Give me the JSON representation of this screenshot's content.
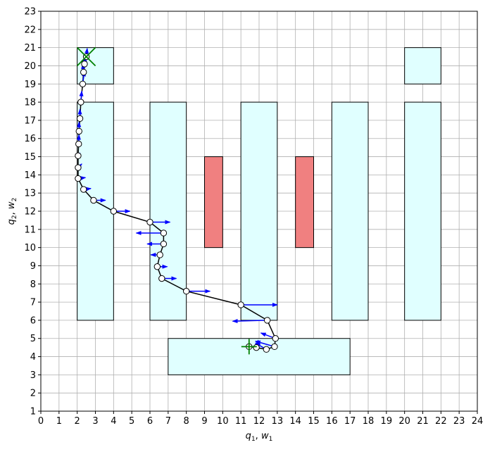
{
  "figure": {
    "xlabel": "q_1, w_1",
    "ylabel": "q_2, w_2"
  },
  "colors": {
    "obstacle_fill": "#e0ffff",
    "obstacle_edge": "#000000",
    "hazard_fill": "#f08080",
    "path": "#000000",
    "waypoint_fill": "#ffffff",
    "arrow": "#0000ff",
    "start_marker": "#008000",
    "goal_marker": "#008000",
    "grid": "#b0b0b0"
  },
  "chart_data": {
    "type": "scatter",
    "title": "",
    "xlabel": "q_1, w_1",
    "ylabel": "q_2, w_2",
    "xlim": [
      0,
      24
    ],
    "ylim": [
      1,
      23
    ],
    "xticks": [
      0,
      1,
      2,
      3,
      4,
      5,
      6,
      7,
      8,
      9,
      10,
      11,
      12,
      13,
      14,
      15,
      16,
      17,
      18,
      19,
      20,
      21,
      22,
      23,
      24
    ],
    "yticks": [
      1,
      2,
      3,
      4,
      5,
      6,
      7,
      8,
      9,
      10,
      11,
      12,
      13,
      14,
      15,
      16,
      17,
      18,
      19,
      20,
      21,
      22,
      23
    ],
    "grid": true,
    "obstacles": [
      {
        "x": 2,
        "y": 19,
        "w": 2,
        "h": 2
      },
      {
        "x": 2,
        "y": 6,
        "w": 2,
        "h": 12
      },
      {
        "x": 6,
        "y": 6,
        "w": 2,
        "h": 12
      },
      {
        "x": 11,
        "y": 6,
        "w": 2,
        "h": 12
      },
      {
        "x": 16,
        "y": 6,
        "w": 2,
        "h": 12
      },
      {
        "x": 20,
        "y": 6,
        "w": 2,
        "h": 12
      },
      {
        "x": 20,
        "y": 19,
        "w": 2,
        "h": 2
      },
      {
        "x": 7,
        "y": 3,
        "w": 10,
        "h": 2
      }
    ],
    "hazards": [
      {
        "x": 9,
        "y": 10,
        "w": 1,
        "h": 5
      },
      {
        "x": 14,
        "y": 10,
        "w": 1,
        "h": 5
      }
    ],
    "path": [
      [
        2.5,
        20.5
      ],
      [
        2.4,
        20.1
      ],
      [
        2.35,
        19.65
      ],
      [
        2.3,
        19.0
      ],
      [
        2.2,
        18.0
      ],
      [
        2.15,
        17.1
      ],
      [
        2.1,
        16.4
      ],
      [
        2.08,
        15.7
      ],
      [
        2.05,
        15.05
      ],
      [
        2.05,
        14.4
      ],
      [
        2.05,
        13.8
      ],
      [
        2.35,
        13.2
      ],
      [
        2.9,
        12.6
      ],
      [
        4.0,
        12.0
      ],
      [
        6.0,
        11.4
      ],
      [
        6.75,
        10.8
      ],
      [
        6.75,
        10.2
      ],
      [
        6.55,
        9.6
      ],
      [
        6.4,
        8.95
      ],
      [
        6.65,
        8.3
      ],
      [
        8.0,
        7.6
      ],
      [
        11.0,
        6.85
      ],
      [
        12.45,
        6.0
      ],
      [
        12.9,
        5.0
      ],
      [
        12.85,
        4.55
      ],
      [
        12.4,
        4.4
      ],
      [
        11.85,
        4.5
      ],
      [
        11.45,
        4.55
      ]
    ],
    "arrows": [
      [
        2.5,
        20.5,
        2.55,
        20.95
      ],
      [
        2.4,
        20.1,
        2.45,
        20.5
      ],
      [
        2.35,
        19.65,
        2.3,
        20.1
      ],
      [
        2.3,
        19.0,
        2.4,
        19.7
      ],
      [
        2.2,
        18.0,
        2.25,
        18.6
      ],
      [
        2.15,
        17.1,
        2.15,
        17.6
      ],
      [
        2.1,
        16.4,
        2.1,
        16.9
      ],
      [
        2.08,
        15.7,
        2.1,
        16.2
      ],
      [
        2.05,
        15.05,
        2.15,
        15.2
      ],
      [
        2.05,
        14.4,
        2.25,
        14.6
      ],
      [
        2.05,
        13.8,
        2.45,
        13.85
      ],
      [
        2.35,
        13.2,
        2.75,
        13.25
      ],
      [
        2.9,
        12.6,
        3.55,
        12.6
      ],
      [
        4.0,
        12.0,
        4.9,
        12.0
      ],
      [
        6.0,
        11.4,
        7.1,
        11.4
      ],
      [
        6.75,
        10.8,
        5.25,
        10.8
      ],
      [
        6.75,
        10.2,
        5.85,
        10.2
      ],
      [
        6.55,
        9.6,
        6.05,
        9.6
      ],
      [
        6.4,
        8.95,
        6.95,
        8.95
      ],
      [
        6.65,
        8.3,
        7.45,
        8.3
      ],
      [
        8.0,
        7.6,
        9.3,
        7.6
      ],
      [
        11.0,
        6.85,
        13.0,
        6.85
      ],
      [
        12.45,
        6.0,
        10.55,
        5.95
      ],
      [
        12.9,
        5.0,
        12.1,
        5.3
      ],
      [
        12.85,
        4.55,
        11.8,
        4.85
      ],
      [
        12.4,
        4.4,
        11.8,
        4.75
      ],
      [
        11.85,
        4.5,
        11.95,
        4.9
      ],
      [
        11.45,
        4.55,
        11.5,
        4.7
      ]
    ],
    "start": [
      2.5,
      20.5
    ],
    "goal": [
      11.45,
      4.55
    ]
  }
}
